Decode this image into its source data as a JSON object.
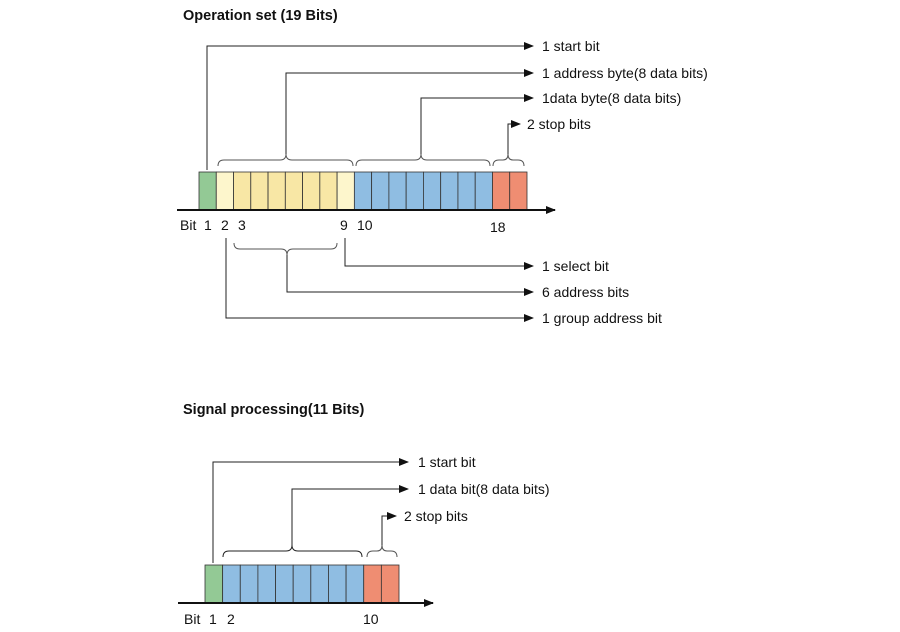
{
  "colors": {
    "start": "#93c995",
    "addr_edge": "#fdf6cc",
    "addr": "#f8e7a5",
    "data": "#8fbde2",
    "stop": "#ef8d72"
  },
  "operation": {
    "title": "Operation set (19 Bits)",
    "bit_label": "Bit",
    "bits": [
      "start",
      "addr_edge",
      "addr",
      "addr",
      "addr",
      "addr",
      "addr",
      "addr",
      "addr_edge",
      "data",
      "data",
      "data",
      "data",
      "data",
      "data",
      "data",
      "data",
      "stop",
      "stop"
    ],
    "ticks": [
      "1",
      "2",
      "3",
      "9",
      "10",
      "18"
    ],
    "labels_above": [
      "1 start bit",
      "1 address byte(8 data bits)",
      "1data byte(8 data bits)",
      "2 stop bits"
    ],
    "labels_below": [
      "1 select bit",
      "6 address bits",
      "1 group address bit"
    ]
  },
  "signal": {
    "title": "Signal processing(11 Bits)",
    "bit_label": "Bit",
    "bits": [
      "start",
      "data",
      "data",
      "data",
      "data",
      "data",
      "data",
      "data",
      "data",
      "stop",
      "stop"
    ],
    "ticks": [
      "1",
      "2",
      "10"
    ],
    "labels_above": [
      "1 start bit",
      "1 data bit(8 data bits)",
      "2 stop bits"
    ]
  }
}
